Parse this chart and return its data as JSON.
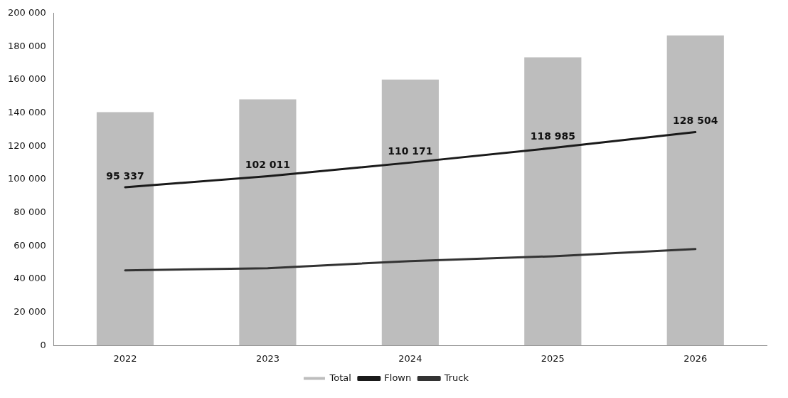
{
  "chart_data": {
    "type": "bar",
    "categories": [
      "2022",
      "2023",
      "2024",
      "2025",
      "2026"
    ],
    "series": [
      {
        "name": "Total",
        "color": "#bdbdbd",
        "values": [
          140500,
          148300,
          160200,
          173500,
          186700
        ]
      },
      {
        "name": "Flown",
        "type": "line",
        "color": "#1a1a1a",
        "values": [
          95337,
          102011,
          110171,
          118985,
          128504
        ],
        "value_labels": [
          "95 337",
          "102 011",
          "110 171",
          "118 985",
          "128 504"
        ]
      },
      {
        "name": "Truck",
        "type": "line",
        "color": "#333333",
        "values": [
          45300,
          46600,
          50900,
          53800,
          58100
        ]
      }
    ],
    "ylim": [
      0,
      200000
    ],
    "yticks": [
      {
        "value": 0,
        "label": "0"
      },
      {
        "value": 20000,
        "label": "20 000"
      },
      {
        "value": 40000,
        "label": "40 000"
      },
      {
        "value": 60000,
        "label": "60 000"
      },
      {
        "value": 80000,
        "label": "80 000"
      },
      {
        "value": 100000,
        "label": "100 000"
      },
      {
        "value": 120000,
        "label": "120 000"
      },
      {
        "value": 140000,
        "label": "140 000"
      },
      {
        "value": 160000,
        "label": "160 000"
      },
      {
        "value": 180000,
        "label": "180 000"
      },
      {
        "value": 200000,
        "label": "200 000"
      }
    ],
    "grid": false,
    "legend": "bottom",
    "marker": "none",
    "line_style": "solid"
  }
}
